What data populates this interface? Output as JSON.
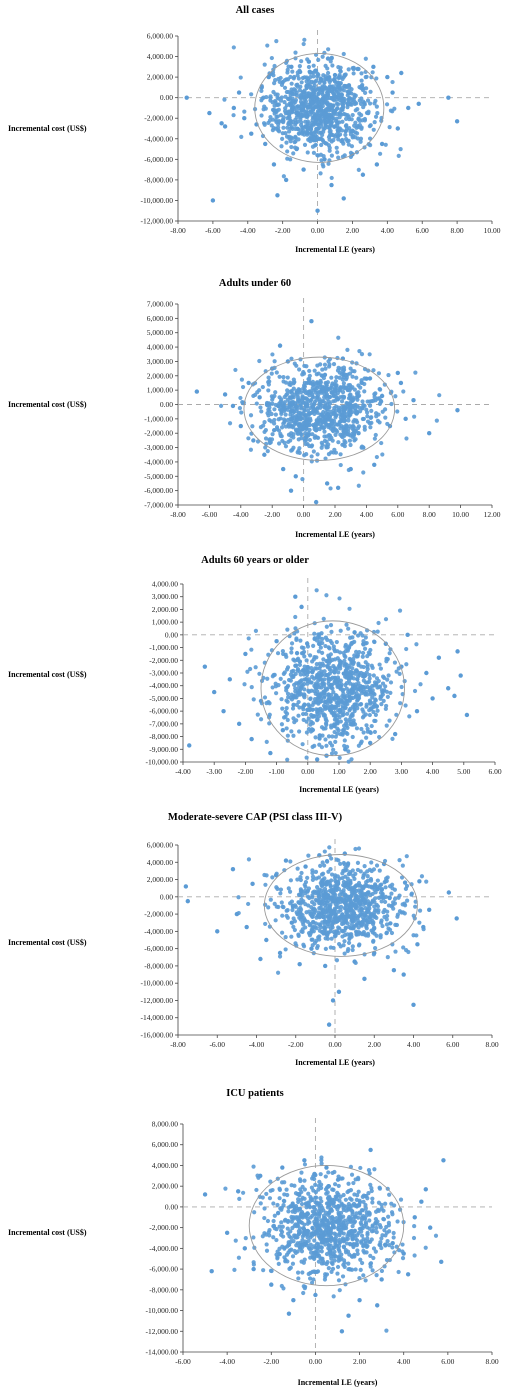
{
  "chart_data": [
    {
      "type": "scatter",
      "title": "All cases",
      "xlabel": "Incremental LE (years)",
      "ylabel": "Incremental cost (US$)",
      "xlim": [
        -8,
        10
      ],
      "ylim": [
        -12000,
        6000
      ],
      "xticks": [
        "-8.00",
        "-6.00",
        "-4.00",
        "-2.00",
        "0.00",
        "2.00",
        "4.00",
        "6.00",
        "8.00",
        "10.00"
      ],
      "yticks": [
        "6,000.00",
        "4,000.00",
        "2,000.00",
        "0.00",
        "-2,000.00",
        "-4,000.00",
        "-6,000.00",
        "-8,000.00",
        "-10,000.00",
        "-12,000.00"
      ],
      "ellipse": {
        "cx": 0.1,
        "cy": -1000,
        "rx": 3.7,
        "ry": 5300
      },
      "color": "#5b9bd5",
      "points": [
        [
          -7.5,
          0
        ],
        [
          -6.2,
          -1500
        ],
        [
          -6.0,
          -10000
        ],
        [
          -5.5,
          -2500
        ],
        [
          -5.3,
          -2800
        ],
        [
          -4.8,
          -1000
        ],
        [
          -4.5,
          500
        ],
        [
          -4.2,
          -2000
        ],
        [
          -3.8,
          -3500
        ],
        [
          -3.5,
          -2600
        ],
        [
          -3.2,
          1000
        ],
        [
          -3.0,
          -4500
        ],
        [
          -2.8,
          2000
        ],
        [
          -2.5,
          -6500
        ],
        [
          -2.3,
          -9500
        ],
        [
          -2.0,
          1500
        ],
        [
          -1.8,
          -8000
        ],
        [
          -1.5,
          3000
        ],
        [
          -1.2,
          -5000
        ],
        [
          -1.0,
          2500
        ],
        [
          -0.8,
          -7000
        ],
        [
          -0.5,
          3500
        ],
        [
          -0.3,
          -4000
        ],
        [
          0.0,
          -11000
        ],
        [
          0.2,
          1800
        ],
        [
          0.4,
          -6000
        ],
        [
          0.6,
          3800
        ],
        [
          0.8,
          -8500
        ],
        [
          1.0,
          2200
        ],
        [
          1.2,
          -3000
        ],
        [
          1.5,
          -9800
        ],
        [
          1.8,
          1200
        ],
        [
          2.0,
          -5500
        ],
        [
          2.3,
          2800
        ],
        [
          2.6,
          -7500
        ],
        [
          2.9,
          -1500
        ],
        [
          3.2,
          3000
        ],
        [
          3.4,
          -6500
        ],
        [
          3.7,
          -4500
        ],
        [
          4.0,
          2000
        ],
        [
          4.3,
          500
        ],
        [
          4.6,
          -3000
        ],
        [
          4.8,
          2400
        ],
        [
          5.2,
          -1000
        ],
        [
          5.8,
          -600
        ],
        [
          7.5,
          0
        ],
        [
          8.0,
          -2300
        ]
      ],
      "point_count_note": ""
    },
    {
      "type": "scatter",
      "title": "Adults under 60",
      "xlabel": "Incremental LE (years)",
      "ylabel": "Incremental cost (US$)",
      "xlim": [
        -8,
        12
      ],
      "ylim": [
        -7000,
        7000
      ],
      "xticks": [
        "-8.00",
        "-6.00",
        "-4.00",
        "-2.00",
        "0.00",
        "2.00",
        "4.00",
        "6.00",
        "8.00",
        "10.00",
        "12.00"
      ],
      "yticks": [
        "7,000.00",
        "6,000.00",
        "5,000.00",
        "4,000.00",
        "3,000.00",
        "2,000.00",
        "1,000.00",
        "0.00",
        "-1,000.00",
        "-2,000.00",
        "-3,000.00",
        "-4,000.00",
        "-5,000.00",
        "-6,000.00",
        "-7,000.00"
      ],
      "ellipse": {
        "cx": 1.0,
        "cy": -300,
        "rx": 4.8,
        "ry": 3600
      },
      "color": "#5b9bd5",
      "points": [
        [
          -6.8,
          900
        ],
        [
          -5.0,
          700
        ],
        [
          -4.5,
          -100
        ],
        [
          -4.0,
          -1500
        ],
        [
          -3.5,
          1500
        ],
        [
          -3.2,
          -2500
        ],
        [
          -2.8,
          500
        ],
        [
          -2.5,
          -3500
        ],
        [
          -2.0,
          2500
        ],
        [
          -1.5,
          4100
        ],
        [
          -1.3,
          -4500
        ],
        [
          -1.0,
          3000
        ],
        [
          -0.8,
          -6000
        ],
        [
          -0.5,
          -5000
        ],
        [
          0.5,
          5800
        ],
        [
          0.8,
          -6800
        ],
        [
          1.5,
          -5500
        ],
        [
          2.5,
          3200
        ],
        [
          3.0,
          -4500
        ],
        [
          3.5,
          -2000
        ],
        [
          4.0,
          1800
        ],
        [
          4.5,
          -4200
        ],
        [
          5.0,
          600
        ],
        [
          5.5,
          -1500
        ],
        [
          6.0,
          2200
        ],
        [
          6.5,
          -1000
        ],
        [
          7.0,
          300
        ],
        [
          8.0,
          -2000
        ],
        [
          9.8,
          -400
        ],
        [
          6.2,
          1500
        ],
        [
          3.8,
          -3000
        ],
        [
          2.2,
          -5800
        ]
      ]
    },
    {
      "type": "scatter",
      "title": "Adults 60 years or older",
      "xlabel": "Incremental LE (years)",
      "ylabel": "Incremental cost (US$)",
      "xlim": [
        -4,
        6
      ],
      "ylim": [
        -10000,
        4000
      ],
      "xticks": [
        "-4.00",
        "-3.00",
        "-2.00",
        "-1.00",
        "0.00",
        "1.00",
        "2.00",
        "3.00",
        "4.00",
        "5.00",
        "6.00"
      ],
      "yticks": [
        "4,000.00",
        "3,000.00",
        "2,000.00",
        "1,000.00",
        "0.00",
        "-1,000.00",
        "-2,000.00",
        "-3,000.00",
        "-4,000.00",
        "-5,000.00",
        "-6,000.00",
        "-7,000.00",
        "-8,000.00",
        "-9,000.00",
        "-10,000.00"
      ],
      "ellipse": {
        "cx": 0.8,
        "cy": -4200,
        "rx": 2.3,
        "ry": 5300
      },
      "color": "#5b9bd5",
      "points": [
        [
          -3.8,
          -8700
        ],
        [
          -3.3,
          -2500
        ],
        [
          -3.0,
          -4500
        ],
        [
          -2.7,
          -6000
        ],
        [
          -2.5,
          -3500
        ],
        [
          -2.2,
          -7000
        ],
        [
          -2.0,
          -1500
        ],
        [
          -1.8,
          -8200
        ],
        [
          -1.5,
          -5200
        ],
        [
          -1.2,
          -9300
        ],
        [
          -1.0,
          -500
        ],
        [
          -0.8,
          -7500
        ],
        [
          -0.4,
          3000
        ],
        [
          -0.2,
          2200
        ],
        [
          0.3,
          -9800
        ],
        [
          0.6,
          -9500
        ],
        [
          1.2,
          -9000
        ],
        [
          1.5,
          200
        ],
        [
          2.0,
          -8500
        ],
        [
          2.5,
          -700
        ],
        [
          2.8,
          -7800
        ],
        [
          3.0,
          -2500
        ],
        [
          3.2,
          0
        ],
        [
          3.5,
          -6000
        ],
        [
          3.8,
          -3000
        ],
        [
          4.0,
          -5000
        ],
        [
          4.2,
          -1800
        ],
        [
          4.5,
          -4200
        ],
        [
          4.7,
          -4800
        ],
        [
          4.9,
          -3200
        ],
        [
          5.1,
          -6300
        ],
        [
          4.8,
          -1300
        ]
      ]
    },
    {
      "type": "scatter",
      "title": "Moderate-severe CAP (PSI class III-V)",
      "xlabel": "Incremental LE (years)",
      "ylabel": "Incremental cost (US$)",
      "xlim": [
        -8,
        8
      ],
      "ylim": [
        -16000,
        6000
      ],
      "xticks": [
        "-8.00",
        "-6.00",
        "-4.00",
        "-2.00",
        "0.00",
        "2.00",
        "4.00",
        "6.00",
        "8.00"
      ],
      "yticks": [
        "6,000.00",
        "4,000.00",
        "2,000.00",
        "0.00",
        "-2,000.00",
        "-4,000.00",
        "-6,000.00",
        "-8,000.00",
        "-10,000.00",
        "-12,000.00",
        "-14,000.00",
        "-16,000.00"
      ],
      "ellipse": {
        "cx": 0.3,
        "cy": -1000,
        "rx": 3.9,
        "ry": 5900
      },
      "color": "#5b9bd5",
      "points": [
        [
          -7.6,
          1200
        ],
        [
          -7.5,
          -500
        ],
        [
          -6.0,
          -4000
        ],
        [
          -5.2,
          3200
        ],
        [
          -5.0,
          -2000
        ],
        [
          -4.5,
          -3500
        ],
        [
          -4.2,
          1500
        ],
        [
          -3.8,
          -7200
        ],
        [
          -3.5,
          -5000
        ],
        [
          -3.0,
          2500
        ],
        [
          -2.8,
          -6500
        ],
        [
          -2.5,
          4200
        ],
        [
          -2.2,
          -3000
        ],
        [
          -1.8,
          -7800
        ],
        [
          -1.5,
          3500
        ],
        [
          -1.2,
          -6000
        ],
        [
          -0.8,
          4800
        ],
        [
          -0.5,
          -8000
        ],
        [
          -0.3,
          -14800
        ],
        [
          -0.1,
          -12000
        ],
        [
          0.2,
          -11000
        ],
        [
          0.5,
          5000
        ],
        [
          1.0,
          -7500
        ],
        [
          1.5,
          -9500
        ],
        [
          2.0,
          -6500
        ],
        [
          2.5,
          3800
        ],
        [
          3.0,
          -8500
        ],
        [
          3.5,
          -9000
        ],
        [
          4.0,
          -12500
        ],
        [
          4.2,
          -5500
        ],
        [
          4.5,
          -3500
        ],
        [
          5.8,
          500
        ],
        [
          6.2,
          -2500
        ],
        [
          4.8,
          -1500
        ],
        [
          4.3,
          1800
        ]
      ]
    },
    {
      "type": "scatter",
      "title": "ICU patients",
      "xlabel": "Incremental LE (years)",
      "ylabel": "Incremental cost (US$)",
      "xlim": [
        -6,
        8
      ],
      "ylim": [
        -14000,
        8000
      ],
      "xticks": [
        "-6.00",
        "-4.00",
        "-2.00",
        "0.00",
        "2.00",
        "4.00",
        "6.00",
        "8.00"
      ],
      "yticks": [
        "8,000.00",
        "6,000.00",
        "4,000.00",
        "2,000.00",
        "0.00",
        "-2,000.00",
        "-4,000.00",
        "-6,000.00",
        "-8,000.00",
        "-10,000.00",
        "-12,000.00",
        "-14,000.00"
      ],
      "ellipse": {
        "cx": 0.5,
        "cy": -1800,
        "rx": 3.5,
        "ry": 5800
      },
      "color": "#5b9bd5",
      "points": [
        [
          -5.0,
          1200
        ],
        [
          -4.7,
          -6200
        ],
        [
          -4.0,
          -2500
        ],
        [
          -3.5,
          1500
        ],
        [
          -3.2,
          -4000
        ],
        [
          -2.8,
          -6000
        ],
        [
          -2.5,
          3000
        ],
        [
          -2.0,
          -7500
        ],
        [
          -1.5,
          3800
        ],
        [
          -1.2,
          -10300
        ],
        [
          -1.0,
          -9000
        ],
        [
          -0.5,
          4500
        ],
        [
          0.0,
          -8500
        ],
        [
          0.5,
          3800
        ],
        [
          1.2,
          -12000
        ],
        [
          1.5,
          -10500
        ],
        [
          2.0,
          -9000
        ],
        [
          2.5,
          5500
        ],
        [
          2.8,
          -9500
        ],
        [
          3.0,
          -7000
        ],
        [
          3.5,
          -3500
        ],
        [
          4.0,
          -4500
        ],
        [
          4.2,
          -6500
        ],
        [
          4.5,
          -1000
        ],
        [
          5.0,
          1700
        ],
        [
          5.2,
          -2000
        ],
        [
          5.8,
          4500
        ],
        [
          5.7,
          -5300
        ],
        [
          4.8,
          500
        ]
      ]
    }
  ]
}
